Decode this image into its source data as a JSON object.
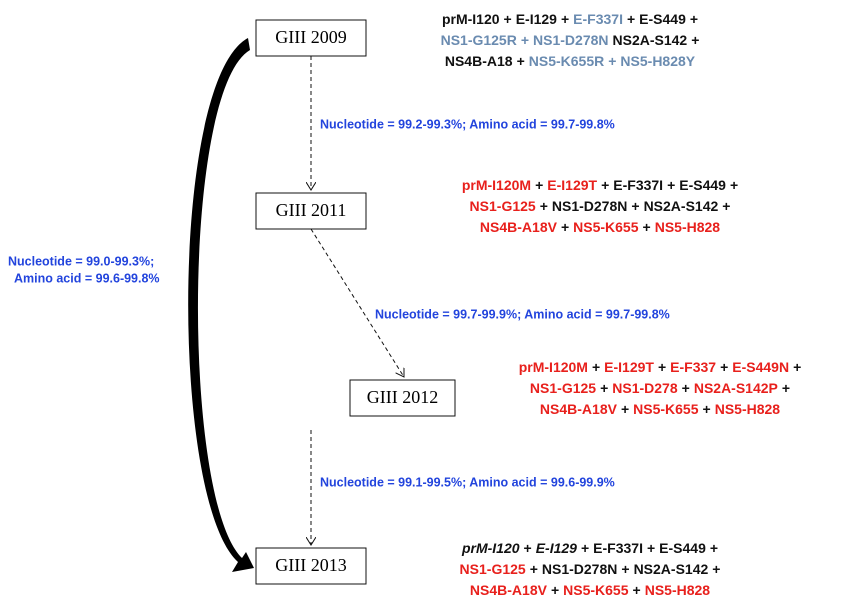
{
  "nodes": [
    {
      "label": "GIII 2009",
      "mutations": [
        [
          {
            "text": "prM-I120",
            "color": "#111111"
          },
          {
            "text": "+",
            "color": "#111111"
          },
          {
            "text": "E-I129",
            "color": "#111111"
          },
          {
            "text": "+",
            "color": "#111111"
          },
          {
            "text": "E-F337I",
            "color": "#6a8bb0"
          },
          {
            "text": "+",
            "color": "#111111"
          },
          {
            "text": "E-S449",
            "color": "#111111"
          },
          {
            "text": "+",
            "color": "#111111"
          }
        ],
        [
          {
            "text": "NS1-G125R",
            "color": "#6a8bb0"
          },
          {
            "text": "+",
            "color": "#6a8bb0"
          },
          {
            "text": "NS1-D278N",
            "color": "#6a8bb0"
          },
          {
            "text": "NS2A-S142",
            "color": "#111111"
          },
          {
            "text": "+",
            "color": "#111111"
          }
        ],
        [
          {
            "text": "NS4B-A18",
            "color": "#111111"
          },
          {
            "text": "+",
            "color": "#111111"
          },
          {
            "text": "NS5-K655R",
            "color": "#6a8bb0"
          },
          {
            "text": "+",
            "color": "#6a8bb0"
          },
          {
            "text": "NS5-H828Y",
            "color": "#6a8bb0"
          }
        ]
      ]
    },
    {
      "label": "GIII 2011",
      "mutations": [
        [
          {
            "text": "prM-I120M",
            "color": "#e8201c"
          },
          {
            "text": "+",
            "color": "#111111"
          },
          {
            "text": "E-I129T",
            "color": "#e8201c"
          },
          {
            "text": "+",
            "color": "#111111"
          },
          {
            "text": "E-F337I",
            "color": "#111111"
          },
          {
            "text": "+",
            "color": "#111111"
          },
          {
            "text": "E-S449",
            "color": "#111111"
          },
          {
            "text": "+",
            "color": "#111111"
          }
        ],
        [
          {
            "text": "NS1-G125",
            "color": "#e8201c"
          },
          {
            "text": "+",
            "color": "#111111"
          },
          {
            "text": "NS1-D278N",
            "color": "#111111"
          },
          {
            "text": "+",
            "color": "#111111"
          },
          {
            "text": "NS2A-S142",
            "color": "#111111"
          },
          {
            "text": "+",
            "color": "#111111"
          }
        ],
        [
          {
            "text": "NS4B-A18V",
            "color": "#e8201c"
          },
          {
            "text": "+",
            "color": "#111111"
          },
          {
            "text": "NS5-K655",
            "color": "#e8201c"
          },
          {
            "text": "+",
            "color": "#111111"
          },
          {
            "text": "NS5-H828",
            "color": "#e8201c"
          }
        ]
      ]
    },
    {
      "label": "GIII 2012",
      "mutations": [
        [
          {
            "text": "prM-I120M",
            "color": "#e8201c"
          },
          {
            "text": "+",
            "color": "#111111"
          },
          {
            "text": "E-I129T",
            "color": "#e8201c"
          },
          {
            "text": "+",
            "color": "#111111"
          },
          {
            "text": "E-F337",
            "color": "#e8201c"
          },
          {
            "text": "+",
            "color": "#111111"
          },
          {
            "text": "E-S449N",
            "color": "#e8201c"
          },
          {
            "text": "+",
            "color": "#111111"
          }
        ],
        [
          {
            "text": "NS1-G125",
            "color": "#e8201c"
          },
          {
            "text": "+",
            "color": "#111111"
          },
          {
            "text": "NS1-D278",
            "color": "#e8201c"
          },
          {
            "text": "+",
            "color": "#111111"
          },
          {
            "text": "NS2A-S142P",
            "color": "#e8201c"
          },
          {
            "text": "+",
            "color": "#111111"
          }
        ],
        [
          {
            "text": "NS4B-A18V",
            "color": "#e8201c"
          },
          {
            "text": "+",
            "color": "#111111"
          },
          {
            "text": "NS5-K655",
            "color": "#e8201c"
          },
          {
            "text": "+",
            "color": "#111111"
          },
          {
            "text": "NS5-H828",
            "color": "#e8201c"
          }
        ]
      ]
    },
    {
      "label": "GIII 2013",
      "mutations": [
        [
          {
            "text": "prM-I120",
            "color": "#111111",
            "italic": true
          },
          {
            "text": "+",
            "color": "#111111"
          },
          {
            "text": "E-I129",
            "color": "#111111",
            "italic": true
          },
          {
            "text": "+",
            "color": "#111111"
          },
          {
            "text": "E-F337I",
            "color": "#111111"
          },
          {
            "text": "+",
            "color": "#111111"
          },
          {
            "text": "E-S449",
            "color": "#111111"
          },
          {
            "text": "+",
            "color": "#111111"
          }
        ],
        [
          {
            "text": "NS1-G125",
            "color": "#e8201c"
          },
          {
            "text": "+",
            "color": "#111111"
          },
          {
            "text": "NS1-D278N",
            "color": "#111111"
          },
          {
            "text": "+",
            "color": "#111111"
          },
          {
            "text": "NS2A-S142",
            "color": "#111111"
          },
          {
            "text": "+",
            "color": "#111111"
          }
        ],
        [
          {
            "text": "NS4B-A18V",
            "color": "#e8201c"
          },
          {
            "text": "+",
            "color": "#111111"
          },
          {
            "text": "NS5-K655",
            "color": "#e8201c"
          },
          {
            "text": "+",
            "color": "#111111"
          },
          {
            "text": "NS5-H828",
            "color": "#e8201c"
          }
        ]
      ]
    }
  ],
  "edges": [
    {
      "label": "Nucleotide = 99.2-99.3%;  Amino acid = 99.7-99.8%"
    },
    {
      "label": "Nucleotide = 99.7-99.9%;  Amino acid = 99.7-99.8%"
    },
    {
      "label": "Nucleotide = 99.1-99.5%;  Amino acid = 99.6-99.9%"
    }
  ],
  "side_label": [
    "Nucleotide = 99.0-99.3%;",
    "Amino acid = 99.6-99.8%"
  ]
}
